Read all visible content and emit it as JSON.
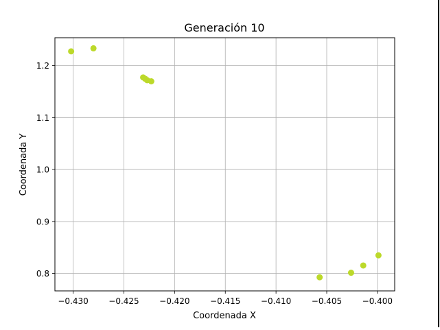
{
  "chart_data": {
    "type": "scatter",
    "title": "Generación 10",
    "xlabel": "Coordenada X",
    "ylabel": "Coordenada Y",
    "xlim": [
      -0.4318,
      -0.3983
    ],
    "ylim": [
      0.7665,
      1.2535
    ],
    "xticks": [
      -0.43,
      -0.425,
      -0.42,
      -0.415,
      -0.41,
      -0.405,
      -0.4
    ],
    "xtick_labels": [
      "−0.430",
      "−0.425",
      "−0.420",
      "−0.415",
      "−0.410",
      "−0.405",
      "−0.400"
    ],
    "yticks": [
      0.8,
      0.9,
      1.0,
      1.1,
      1.2
    ],
    "ytick_labels": [
      "0.8",
      "0.9",
      "1.0",
      "1.1",
      "1.2"
    ],
    "grid": true,
    "color": "#bcd92a",
    "x": [
      -0.4302,
      -0.428,
      -0.4231,
      -0.4229,
      -0.4227,
      -0.4223,
      -0.4057,
      -0.4026,
      -0.4014,
      -0.3999
    ],
    "y": [
      1.2273,
      1.2332,
      1.1772,
      1.1745,
      1.1718,
      1.1697,
      0.7927,
      0.8014,
      0.8154,
      0.8349
    ]
  }
}
